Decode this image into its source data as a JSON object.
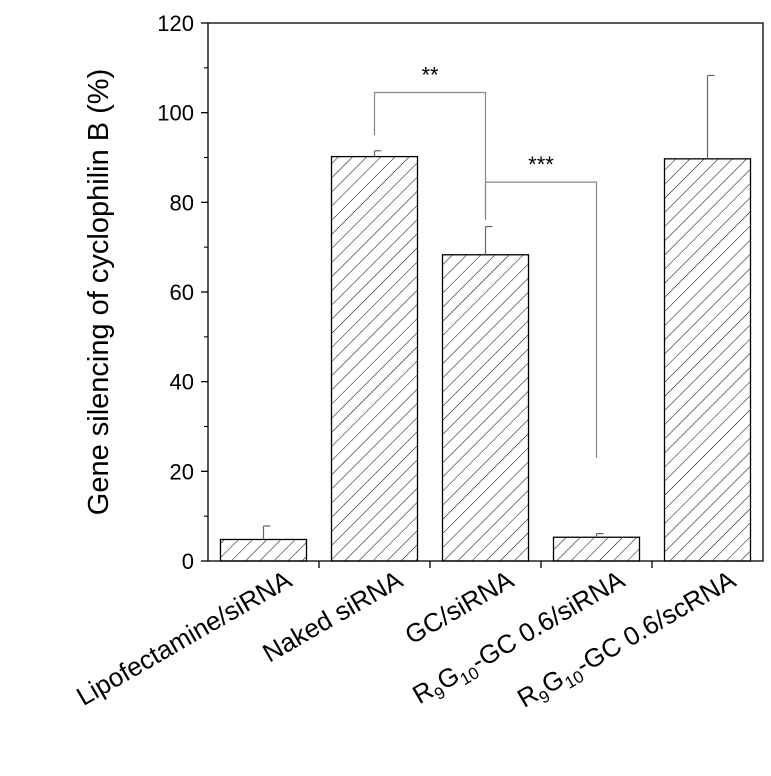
{
  "chart_data": {
    "type": "bar",
    "title": "",
    "xlabel": "",
    "ylabel": "Gene silencing of cyclophilin B (%)",
    "ylim": [
      0,
      120
    ],
    "yticks": [
      0,
      20,
      40,
      60,
      80,
      100,
      120
    ],
    "grid": false,
    "legend": "none",
    "bar_pattern": "diagonal-hatch",
    "categories": [
      {
        "label": "Lipofectamine/siRNA"
      },
      {
        "label": "Naked siRNA"
      },
      {
        "label": "GC/siRNA"
      },
      {
        "label": "",
        "parts": [
          {
            "text": "R"
          },
          {
            "text": "9",
            "sub": true
          },
          {
            "text": "G"
          },
          {
            "text": "10",
            "sub": true
          },
          {
            "text": "-GC 0.6/siRNA"
          }
        ]
      },
      {
        "label": "",
        "parts": [
          {
            "text": "R"
          },
          {
            "text": "9",
            "sub": true
          },
          {
            "text": "G"
          },
          {
            "text": "10",
            "sub": true
          },
          {
            "text": "-GC 0.6/scRNA"
          }
        ]
      }
    ],
    "values": [
      4.8,
      90.2,
      68.3,
      5.3,
      89.7
    ],
    "error": [
      3.0,
      1.3,
      6.3,
      0.8,
      18.6
    ],
    "significance": [
      {
        "from": 1,
        "to": 2,
        "label": "**",
        "bracket_y": 104.5,
        "left_end": 95,
        "right_end": 76
      },
      {
        "from": 2,
        "to": 3,
        "label": "***",
        "bracket_y": 84.5,
        "left_end": 77,
        "right_end": 23
      }
    ]
  }
}
